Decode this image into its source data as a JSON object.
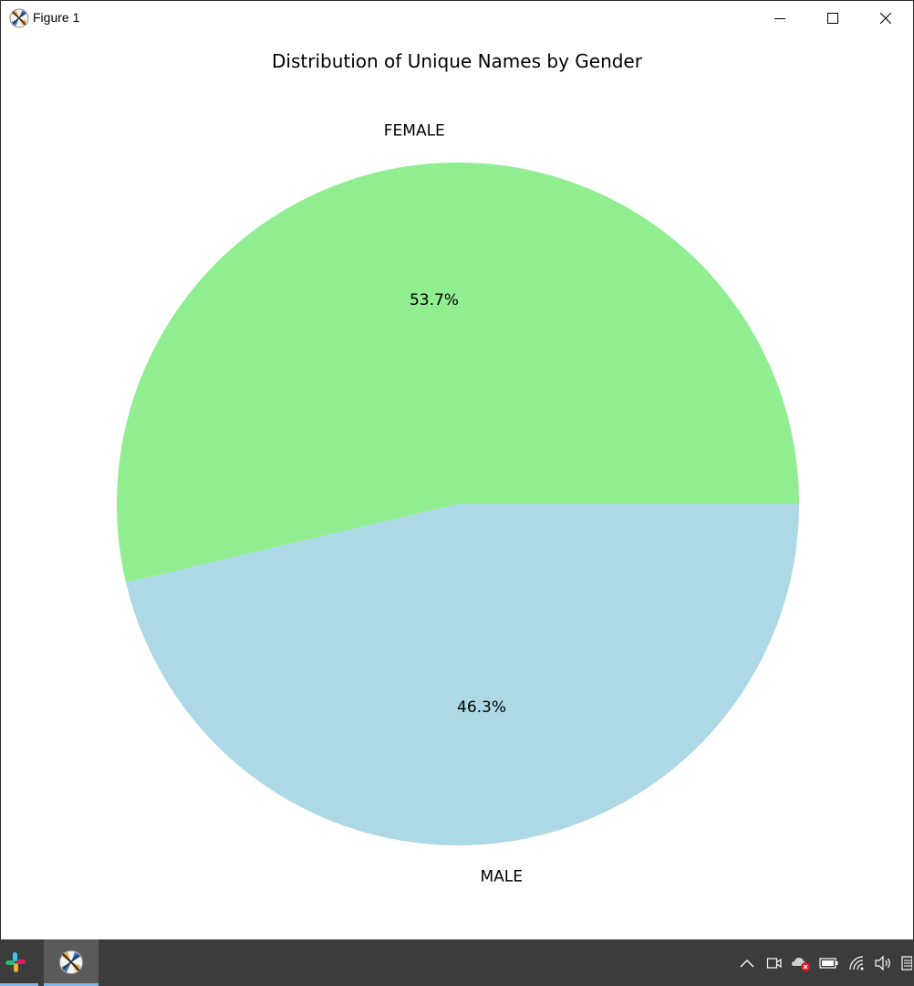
{
  "window": {
    "title": "Figure 1",
    "icon": "matplotlib-icon",
    "controls": [
      "minimize-icon",
      "maximize-icon",
      "close-icon"
    ]
  },
  "chart_data": {
    "type": "pie",
    "title": "Distribution of Unique Names by Gender",
    "slices": [
      {
        "label": "FEMALE",
        "value": 53.7,
        "pct_label": "53.7%",
        "color": "#90ee90"
      },
      {
        "label": "MALE",
        "value": 46.3,
        "pct_label": "46.3%",
        "color": "#add8e6"
      }
    ],
    "start_angle_deg": 0,
    "direction": "counterclockwise",
    "legend": "none"
  },
  "taskbar": {
    "apps": [
      "slack-icon",
      "matplotlib-icon"
    ],
    "tray_icons": [
      "chevron-up-icon",
      "meet-now-icon",
      "onedrive-error-icon",
      "battery-icon",
      "wifi-icon",
      "volume-icon",
      "notifications-icon"
    ]
  }
}
